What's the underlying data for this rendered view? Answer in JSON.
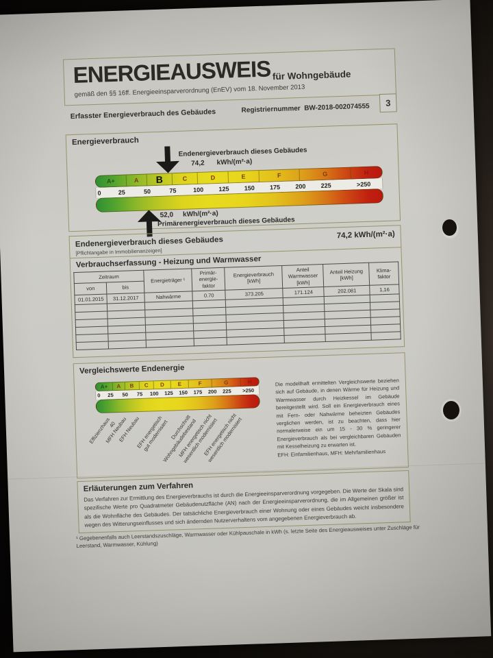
{
  "header": {
    "title": "ENERGIEAUSWEIS",
    "subtitle": "für Wohngebäude",
    "law_line": "gemäß den §§ 16ff. Energieeinsparverordnung (EnEV) vom  18. November 2013",
    "section_label": "Erfasster Energieverbrauch des Gebäudes",
    "registry_label": "Registriernummer",
    "registry_value": "BW-2018-002074555",
    "page_number": "3"
  },
  "colors": {
    "scale_green": "#2f8f33",
    "scale_yellow": "#e7db1e",
    "scale_red": "#ba1a0e",
    "box_border_olive": "#96936c",
    "paper": "#cac9c4"
  },
  "energieverbrauch": {
    "title": "Energieverbrauch",
    "classes": [
      "A+",
      "A",
      "B",
      "C",
      "D",
      "E",
      "F",
      "G",
      "H"
    ],
    "rating_class": "B",
    "ticks": [
      "0",
      "25",
      "50",
      "75",
      "100",
      "125",
      "150",
      "175",
      "200",
      "225",
      ">250"
    ],
    "end_label": "Endenergieverbrauch dieses Gebäudes",
    "end_value": "74,2",
    "end_unit": "kWh/(m²·a)",
    "prim_value": "52,0",
    "prim_unit": "kWh/(m²·a)",
    "prim_label": "Primärenergieverbrauch dieses Gebäudes"
  },
  "endenergie": {
    "title": "Endenergieverbrauch dieses Gebäudes",
    "subtitle": "[Pflichtangabe in Immobilienanzeigen]",
    "value": "74,2 kWh/(m²·a)",
    "table_title": "Verbrauchserfassung - Heizung und Warmwasser",
    "table": {
      "headers": {
        "zeitraum": "Zeitraum",
        "von": "von",
        "bis": "bis",
        "energietraeger": "Energieträger ¹",
        "pef": "Primär-\nenergie-\nfaktor",
        "verbrauch": "Energieverbrauch\n[kWh]",
        "warmwasser": "Anteil\nWarmwasser\n[kWh]",
        "heizung": "Anteil Heizung\n[kWh]",
        "klima": "Klima-\nfaktor"
      },
      "row": [
        "01.01.2015",
        "31.12.2017",
        "Nahwärme",
        "0.70",
        "373.205",
        "171.124",
        "202.081",
        "1,16"
      ],
      "empty_rows": 6
    }
  },
  "vergleich": {
    "title": "Vergleichswerte Endenergie",
    "classes": [
      "A+",
      "A",
      "B",
      "C",
      "D",
      "E",
      "F",
      "G",
      "H"
    ],
    "ticks": [
      "0",
      "25",
      "50",
      "75",
      "100",
      "125",
      "150",
      "175",
      "200",
      "225",
      ">250"
    ],
    "labels": [
      "Effizienzhaus 40",
      "MFH Neubau",
      "EFH Neubau",
      "EFH energetisch\ngut modernisiert",
      "Durchschnitt\nWohngebäudebestand",
      "MFH energetisch nicht\nwesentlich modernisiert",
      "EFH energetisch nicht\nwesentlich modernisiert"
    ],
    "text": "Die modellhaft ermittelten Vergleichswerte beziehen sich auf Gebäude, in denen Wärme für Heizung und Warmwasser durch Heizkessel im Gebäude bereitgestellt wird. Soll ein Energieverbrauch eines mit Fern- oder Nahwärme beheizten Gebäudes verglichen werden, ist zu beachten, dass hier normalerweise ein um 15 - 30 % geringerer Energieverbrauch als bei vergleichbaren Gebäuden mit Kesselheizung zu erwarten ist.",
    "abbr": "EFH: Einfamilienhaus, MFH: Mehrfamilienhaus"
  },
  "erlaeuterungen": {
    "title": "Erläuterungen zum Verfahren",
    "text": "Das Verfahren zur Ermittlung des Energieverbrauchs ist durch die Energieeinsparverordnung vorgegeben. Die Werte der Skala sind spezifische Werte pro Quadratmeter Gebäudenutzfläche (AN) nach der Energieeinsparverordnung, die im Allgemeinen größer ist als die Wohnfläche des Gebäudes. Der tatsächliche Energieverbrauch einer Wohnung oder eines Gebäudes weicht insbesondere wegen des Witterungseinflusses und sich ändernden Nutzerverhaltens vom angegebenen Energieverbrauch ab."
  },
  "footnote": "¹ Gegebenenfalls auch Leerstandszuschläge, Warmwasser oder Kühlpauschale in kWh (s. letzte Seite des Energieausweises unter Zuschläge für Leerstand, Warmwasser, Kühlung)"
}
